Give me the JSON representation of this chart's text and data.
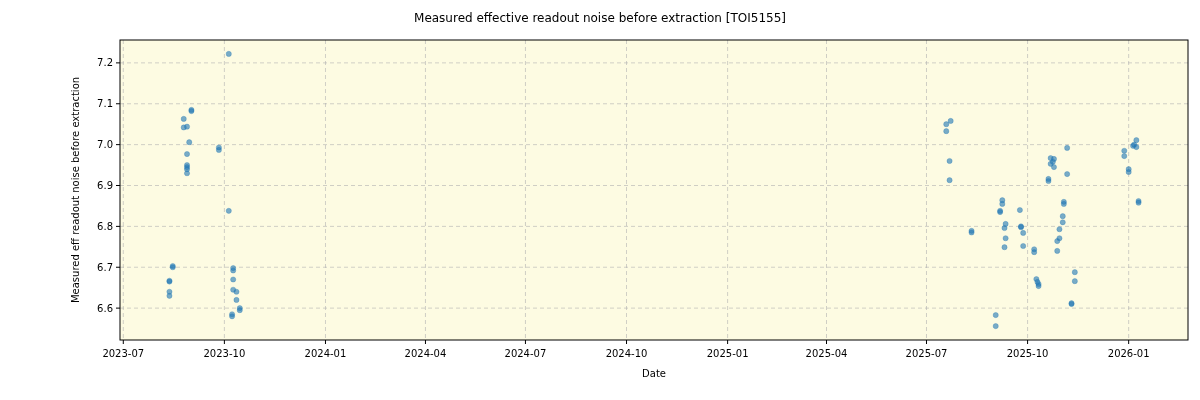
{
  "chart_data": {
    "type": "scatter",
    "title": "Measured effective readout noise before extraction [TOI5155]",
    "xlabel": "Date",
    "ylabel": "Measured eff readout noise before extraction",
    "marker": "circle",
    "grid": true,
    "xlim": [
      "2023-06-28",
      "2026-02-24"
    ],
    "xticks": [
      {
        "value": "2023-07-01",
        "label": "2023-07"
      },
      {
        "value": "2023-10-01",
        "label": "2023-10"
      },
      {
        "value": "2024-01-01",
        "label": "2024-01"
      },
      {
        "value": "2024-04-01",
        "label": "2024-04"
      },
      {
        "value": "2024-07-01",
        "label": "2024-07"
      },
      {
        "value": "2024-10-01",
        "label": "2024-10"
      },
      {
        "value": "2025-01-01",
        "label": "2025-01"
      },
      {
        "value": "2025-04-01",
        "label": "2025-04"
      },
      {
        "value": "2025-07-01",
        "label": "2025-07"
      },
      {
        "value": "2025-10-01",
        "label": "2025-10"
      },
      {
        "value": "2026-01-01",
        "label": "2026-01"
      }
    ],
    "ylim": [
      6.522,
      7.256
    ],
    "yticks": [
      6.6,
      6.7,
      6.8,
      6.9,
      {
        "value": 7,
        "label": "7.0"
      },
      7.1,
      7.2
    ],
    "series": [
      {
        "color": "#1f77b4",
        "x": [
          "2023-08-12",
          "2023-08-12",
          "2023-08-12",
          "2023-08-12",
          "2023-08-15",
          "2023-08-15",
          "2023-08-25",
          "2023-08-25",
          "2023-08-28",
          "2023-09-01",
          "2023-09-01",
          "2023-08-30",
          "2023-08-28",
          "2023-08-28",
          "2023-08-28",
          "2023-08-28",
          "2023-08-28",
          "2023-09-26",
          "2023-09-26",
          "2023-10-05",
          "2023-10-05",
          "2023-10-09",
          "2023-10-09",
          "2023-10-09",
          "2023-10-09",
          "2023-10-12",
          "2023-10-12",
          "2023-10-08",
          "2023-10-08",
          "2023-10-15",
          "2023-10-15",
          "2025-07-19",
          "2025-07-23",
          "2025-07-19",
          "2025-07-22",
          "2025-07-22",
          "2025-08-11",
          "2025-08-11",
          "2025-09-02",
          "2025-09-02",
          "2025-09-08",
          "2025-09-08",
          "2025-09-06",
          "2025-09-06",
          "2025-09-11",
          "2025-09-10",
          "2025-09-11",
          "2025-09-10",
          "2025-09-24",
          "2025-09-25",
          "2025-09-25",
          "2025-09-27",
          "2025-09-27",
          "2025-10-07",
          "2025-10-07",
          "2025-10-09",
          "2025-10-10",
          "2025-10-11",
          "2025-10-11",
          "2025-10-20",
          "2025-10-20",
          "2025-10-22",
          "2025-10-22",
          "2025-10-24",
          "2025-10-25",
          "2025-10-25",
          "2025-11-06",
          "2025-11-06",
          "2025-11-03",
          "2025-11-03",
          "2025-11-02",
          "2025-11-02",
          "2025-10-30",
          "2025-10-30",
          "2025-10-28",
          "2025-10-28",
          "2025-11-13",
          "2025-11-13",
          "2025-11-10",
          "2025-11-10",
          "2025-12-28",
          "2025-12-28",
          "2026-01-01",
          "2026-01-01",
          "2026-01-05",
          "2026-01-06",
          "2026-01-08",
          "2026-01-08",
          "2026-01-10",
          "2026-01-10"
        ],
        "values": [
          6.63,
          6.64,
          6.665,
          6.667,
          6.7,
          6.703,
          7.063,
          7.042,
          7.044,
          7.085,
          7.082,
          7.006,
          6.977,
          6.95,
          6.945,
          6.94,
          6.93,
          6.993,
          6.987,
          7.222,
          6.838,
          6.698,
          6.692,
          6.67,
          6.645,
          6.64,
          6.62,
          6.585,
          6.58,
          6.6,
          6.595,
          7.05,
          7.058,
          7.033,
          6.96,
          6.913,
          6.789,
          6.785,
          6.583,
          6.556,
          6.864,
          6.855,
          6.835,
          6.838,
          6.806,
          6.796,
          6.771,
          6.749,
          6.84,
          6.8,
          6.798,
          6.784,
          6.752,
          6.744,
          6.737,
          6.671,
          6.664,
          6.659,
          6.654,
          6.916,
          6.911,
          6.967,
          6.953,
          6.958,
          6.965,
          6.945,
          6.992,
          6.928,
          6.86,
          6.855,
          6.825,
          6.81,
          6.793,
          6.771,
          6.764,
          6.74,
          6.688,
          6.666,
          6.612,
          6.61,
          6.985,
          6.972,
          6.94,
          6.933,
          6.997,
          7.0,
          7.011,
          6.994,
          6.862,
          6.858
        ]
      }
    ]
  }
}
